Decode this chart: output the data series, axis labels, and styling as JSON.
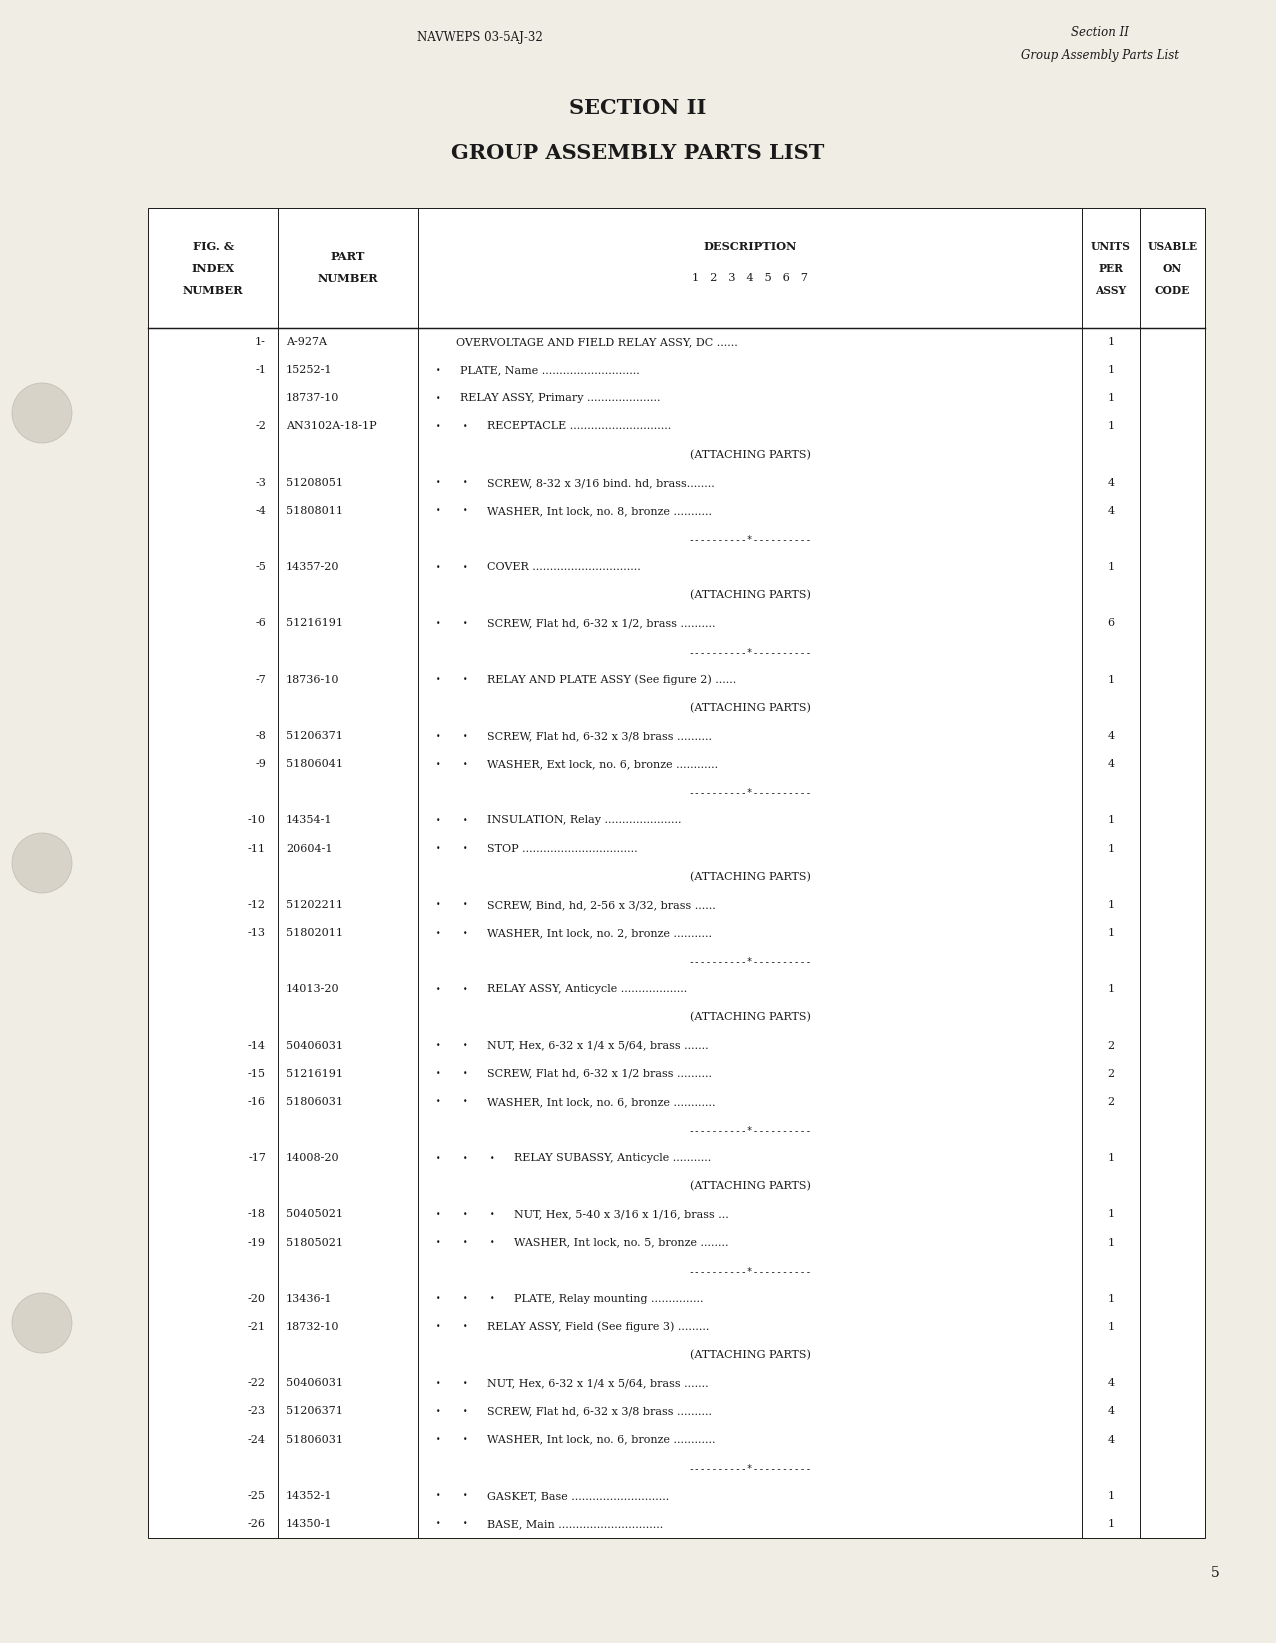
{
  "page_bg": "#f0ede4",
  "text_color": "#1a1a1a",
  "header_left": "NAVWEPS 03-5AJ-32",
  "header_right_line1": "Section II",
  "header_right_line2": "Group Assembly Parts List",
  "title_line1": "SECTION II",
  "title_line2": "GROUP ASSEMBLY PARTS LIST",
  "page_number": "5",
  "rows": [
    {
      "index": "1-",
      "part": "A-927A",
      "indent": 0,
      "desc": "OVERVOLTAGE AND FIELD RELAY ASSY, DC ......",
      "qty": "1",
      "type": "normal"
    },
    {
      "index": "-1",
      "part": "15252-1",
      "indent": 1,
      "desc": "PLATE, Name ............................",
      "qty": "1",
      "type": "normal"
    },
    {
      "index": "",
      "part": "18737-10",
      "indent": 1,
      "desc": "RELAY ASSY, Primary .....................",
      "qty": "1",
      "type": "normal"
    },
    {
      "index": "-2",
      "part": "AN3102A-18-1P",
      "indent": 2,
      "desc": "RECEPTACLE .............................",
      "qty": "1",
      "type": "normal"
    },
    {
      "index": "",
      "part": "",
      "indent": 0,
      "desc": "(ATTACHING PARTS)",
      "qty": "",
      "type": "attaching"
    },
    {
      "index": "-3",
      "part": "51208051",
      "indent": 2,
      "desc": "SCREW, 8-32 x 3/16 bind. hd, brass........",
      "qty": "4",
      "type": "normal"
    },
    {
      "index": "-4",
      "part": "51808011",
      "indent": 2,
      "desc": "WASHER, Int lock, no. 8, bronze ...........",
      "qty": "4",
      "type": "normal"
    },
    {
      "index": "",
      "part": "",
      "indent": 0,
      "desc": "----------*----------",
      "qty": "",
      "type": "separator"
    },
    {
      "index": "-5",
      "part": "14357-20",
      "indent": 2,
      "desc": "COVER ...............................",
      "qty": "1",
      "type": "normal"
    },
    {
      "index": "",
      "part": "",
      "indent": 0,
      "desc": "(ATTACHING PARTS)",
      "qty": "",
      "type": "attaching"
    },
    {
      "index": "-6",
      "part": "51216191",
      "indent": 2,
      "desc": "SCREW, Flat hd, 6-32 x 1/2, brass ..........",
      "qty": "6",
      "type": "normal"
    },
    {
      "index": "",
      "part": "",
      "indent": 0,
      "desc": "----------*----------",
      "qty": "",
      "type": "separator"
    },
    {
      "index": "-7",
      "part": "18736-10",
      "indent": 2,
      "desc": "RELAY AND PLATE ASSY (See figure 2) ......",
      "qty": "1",
      "type": "normal"
    },
    {
      "index": "",
      "part": "",
      "indent": 0,
      "desc": "(ATTACHING PARTS)",
      "qty": "",
      "type": "attaching"
    },
    {
      "index": "-8",
      "part": "51206371",
      "indent": 2,
      "desc": "SCREW, Flat hd, 6-32 x 3/8 brass ..........",
      "qty": "4",
      "type": "normal"
    },
    {
      "index": "-9",
      "part": "51806041",
      "indent": 2,
      "desc": "WASHER, Ext lock, no. 6, bronze ............",
      "qty": "4",
      "type": "normal"
    },
    {
      "index": "",
      "part": "",
      "indent": 0,
      "desc": "----------*----------",
      "qty": "",
      "type": "separator"
    },
    {
      "index": "-10",
      "part": "14354-1",
      "indent": 2,
      "desc": "INSULATION, Relay ......................",
      "qty": "1",
      "type": "normal"
    },
    {
      "index": "-11",
      "part": "20604-1",
      "indent": 2,
      "desc": "STOP .................................",
      "qty": "1",
      "type": "normal"
    },
    {
      "index": "",
      "part": "",
      "indent": 0,
      "desc": "(ATTACHING PARTS)",
      "qty": "",
      "type": "attaching"
    },
    {
      "index": "-12",
      "part": "51202211",
      "indent": 2,
      "desc": "SCREW, Bind, hd, 2-56 x 3/32, brass ......",
      "qty": "1",
      "type": "normal"
    },
    {
      "index": "-13",
      "part": "51802011",
      "indent": 2,
      "desc": "WASHER, Int lock, no. 2, bronze ...........",
      "qty": "1",
      "type": "normal"
    },
    {
      "index": "",
      "part": "",
      "indent": 0,
      "desc": "----------*----------",
      "qty": "",
      "type": "separator"
    },
    {
      "index": "",
      "part": "14013-20",
      "indent": 2,
      "desc": "RELAY ASSY, Anticycle ...................",
      "qty": "1",
      "type": "normal"
    },
    {
      "index": "",
      "part": "",
      "indent": 0,
      "desc": "(ATTACHING PARTS)",
      "qty": "",
      "type": "attaching"
    },
    {
      "index": "-14",
      "part": "50406031",
      "indent": 2,
      "desc": "NUT, Hex, 6-32 x 1/4 x 5/64, brass .......",
      "qty": "2",
      "type": "normal"
    },
    {
      "index": "-15",
      "part": "51216191",
      "indent": 2,
      "desc": "SCREW, Flat hd, 6-32 x 1/2 brass ..........",
      "qty": "2",
      "type": "normal"
    },
    {
      "index": "-16",
      "part": "51806031",
      "indent": 2,
      "desc": "WASHER, Int lock, no. 6, bronze ............",
      "qty": "2",
      "type": "normal"
    },
    {
      "index": "",
      "part": "",
      "indent": 0,
      "desc": "----------*----------",
      "qty": "",
      "type": "separator"
    },
    {
      "index": "-17",
      "part": "14008-20",
      "indent": 3,
      "desc": "RELAY SUBASSY, Anticycle ...........",
      "qty": "1",
      "type": "normal"
    },
    {
      "index": "",
      "part": "",
      "indent": 0,
      "desc": "(ATTACHING PARTS)",
      "qty": "",
      "type": "attaching"
    },
    {
      "index": "-18",
      "part": "50405021",
      "indent": 3,
      "desc": "NUT, Hex, 5-40 x 3/16 x 1/16, brass ...",
      "qty": "1",
      "type": "normal"
    },
    {
      "index": "-19",
      "part": "51805021",
      "indent": 3,
      "desc": "WASHER, Int lock, no. 5, bronze ........",
      "qty": "1",
      "type": "normal"
    },
    {
      "index": "",
      "part": "",
      "indent": 0,
      "desc": "----------*----------",
      "qty": "",
      "type": "separator"
    },
    {
      "index": "-20",
      "part": "13436-1",
      "indent": 3,
      "desc": "PLATE, Relay mounting ...............",
      "qty": "1",
      "type": "normal"
    },
    {
      "index": "-21",
      "part": "18732-10",
      "indent": 2,
      "desc": "RELAY ASSY, Field (See figure 3) .........",
      "qty": "1",
      "type": "normal"
    },
    {
      "index": "",
      "part": "",
      "indent": 0,
      "desc": "(ATTACHING PARTS)",
      "qty": "",
      "type": "attaching"
    },
    {
      "index": "-22",
      "part": "50406031",
      "indent": 2,
      "desc": "NUT, Hex, 6-32 x 1/4 x 5/64, brass .......",
      "qty": "4",
      "type": "normal"
    },
    {
      "index": "-23",
      "part": "51206371",
      "indent": 2,
      "desc": "SCREW, Flat hd, 6-32 x 3/8 brass ..........",
      "qty": "4",
      "type": "normal"
    },
    {
      "index": "-24",
      "part": "51806031",
      "indent": 2,
      "desc": "WASHER, Int lock, no. 6, bronze ............",
      "qty": "4",
      "type": "normal"
    },
    {
      "index": "",
      "part": "",
      "indent": 0,
      "desc": "----------*----------",
      "qty": "",
      "type": "separator"
    },
    {
      "index": "-25",
      "part": "14352-1",
      "indent": 2,
      "desc": "GASKET, Base ............................",
      "qty": "1",
      "type": "normal"
    },
    {
      "index": "-26",
      "part": "14350-1",
      "indent": 2,
      "desc": "BASE, Main ..............................",
      "qty": "1",
      "type": "normal"
    }
  ]
}
